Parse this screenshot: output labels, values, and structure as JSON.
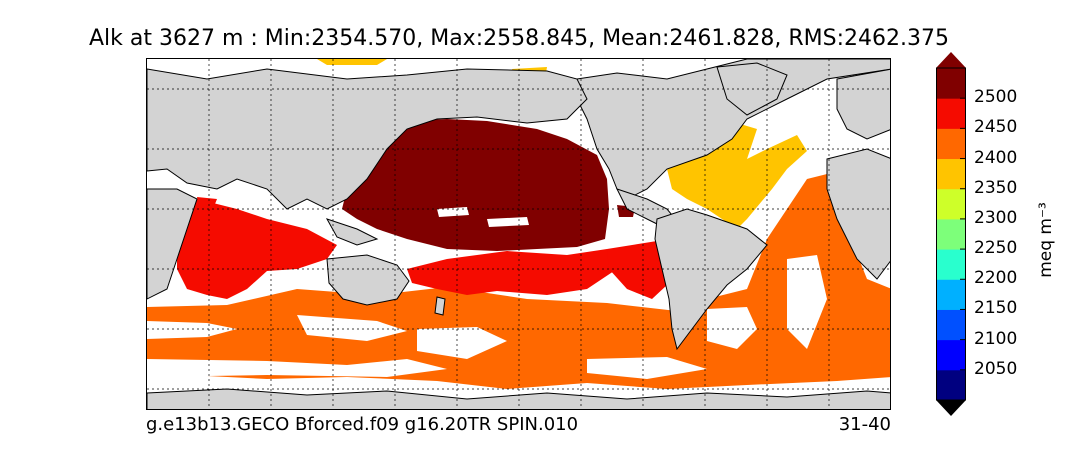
{
  "title": "Alk at 3627 m : Min:2354.570, Max:2558.845, Mean:2461.828, RMS:2462.375",
  "footer": {
    "run_name": "g.e13b13.GECO Bforced.f09 g16.20TR SPIN.010",
    "years": "31-40"
  },
  "colorbar": {
    "unit_label": "meq m⁻³",
    "extend": "both",
    "levels": [
      2000,
      2050,
      2100,
      2150,
      2200,
      2250,
      2300,
      2350,
      2400,
      2450,
      2500,
      2550
    ],
    "tick_labels": [
      "2050",
      "2100",
      "2150",
      "2200",
      "2250",
      "2300",
      "2350",
      "2400",
      "2450",
      "2500"
    ],
    "colors": [
      "#000080",
      "#0000ff",
      "#0050ff",
      "#00b0ff",
      "#29ffce",
      "#7dff7a",
      "#ceff29",
      "#ffc400",
      "#ff6800",
      "#f50b00",
      "#800000"
    ],
    "under_color": "#000080",
    "over_color": "#800000"
  },
  "map": {
    "projection": "equirectangular",
    "land_color": "#d3d3d3",
    "missing_color": "#ffffff",
    "gridlines": "dotted",
    "coastline_color": "#000000"
  }
}
